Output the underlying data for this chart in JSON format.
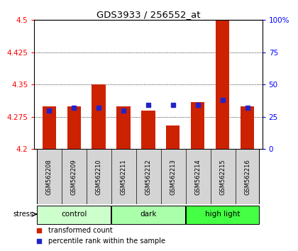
{
  "title": "GDS3933 / 256552_at",
  "samples": [
    "GSM562208",
    "GSM562209",
    "GSM562210",
    "GSM562211",
    "GSM562212",
    "GSM562213",
    "GSM562214",
    "GSM562215",
    "GSM562216"
  ],
  "transformed_count": [
    4.3,
    4.3,
    4.35,
    4.3,
    4.29,
    4.255,
    4.31,
    4.5,
    4.3
  ],
  "percentile_rank": [
    30,
    32,
    32,
    30,
    34,
    34,
    34,
    38,
    32
  ],
  "ylim": [
    4.2,
    4.5
  ],
  "yticks": [
    4.2,
    4.275,
    4.35,
    4.425,
    4.5
  ],
  "right_yticks": [
    0,
    25,
    50,
    75,
    100
  ],
  "right_tick_labels": [
    "0",
    "25",
    "50",
    "75",
    "100%"
  ],
  "groups": [
    {
      "label": "control",
      "indices": [
        0,
        1,
        2
      ],
      "color": "#ccffcc"
    },
    {
      "label": "dark",
      "indices": [
        3,
        4,
        5
      ],
      "color": "#aaffaa"
    },
    {
      "label": "high light",
      "indices": [
        6,
        7,
        8
      ],
      "color": "#44ff44"
    }
  ],
  "bar_color": "#cc2200",
  "blue_color": "#2222cc",
  "bar_width": 0.55,
  "label_area_color": "#d4d4d4",
  "ybase": 4.2,
  "blue_marker_size": 4
}
